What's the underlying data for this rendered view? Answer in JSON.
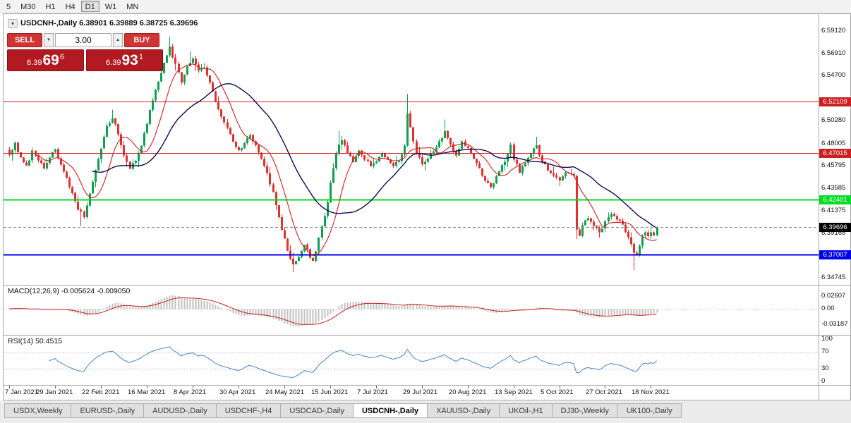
{
  "toolbar": {
    "timeframes": [
      "5",
      "M30",
      "H1",
      "H4",
      "D1",
      "W1",
      "MN"
    ],
    "active": "D1"
  },
  "chart": {
    "title": "USDCNH-,Daily 6.38901 6.39889 6.38725 6.39696",
    "collapse_icon": "▾",
    "trade_panel": {
      "sell_label": "SELL",
      "buy_label": "BUY",
      "volume": "3.00",
      "volume_down_icon": "▼",
      "volume_up_icon": "▲",
      "bid": "6.39696",
      "ask": "6.39931",
      "bid_display": {
        "prefix": "6.39",
        "big": "69",
        "sup": "6"
      },
      "ask_display": {
        "prefix": "6.39",
        "big": "93",
        "sup": "1"
      }
    }
  },
  "chart_data": {
    "type": "candlestick",
    "symbol": "USDCNH-",
    "timeframe": "Daily",
    "current_bar": {
      "open": 6.38901,
      "high": 6.39889,
      "low": 6.38725,
      "close": 6.39696
    },
    "last_close": 6.39696,
    "current_price_label": "6.39696",
    "num_candles": 227,
    "first_x": 8,
    "candle_spacing": 4.06,
    "candles_per_tick": 16,
    "up_color": "#0ea24e",
    "down_color": "#e23030",
    "price_axis": {
      "min": 6.344,
      "max": 6.603,
      "ticks": [
        "6.59120",
        "6.56910",
        "6.54700",
        "6.50280",
        "6.48005",
        "6.45795",
        "6.43585",
        "6.41375",
        "6.39165",
        "6.34745"
      ]
    },
    "x_ticks": [
      "7 Jan 2021",
      "29 Jan 2021",
      "22 Feb 2021",
      "16 Mar 2021",
      "8 Apr 2021",
      "30 Apr 2021",
      "24 May 2021",
      "15 Jun 2021",
      "7 Jul 2021",
      "29 Jul 2021",
      "20 Aug 2021",
      "13 Sep 2021",
      "5 Oct 2021",
      "27 Oct 2021",
      "18 Nov 2021"
    ],
    "levels": [
      {
        "value": 6.52109,
        "label": "6.52109",
        "color": "#cc2020",
        "width": 1
      },
      {
        "value": 6.47015,
        "label": "6.47015",
        "color": "#cc2020",
        "width": 1
      },
      {
        "value": 6.42401,
        "label": "6.42401",
        "color": "#00dd22",
        "width": 2
      },
      {
        "value": 6.37007,
        "label": "6.37007",
        "color": "#0000e6",
        "width": 2
      }
    ],
    "ma": [
      {
        "period": 10,
        "color": "#d02020",
        "w": 1.1
      },
      {
        "period": 30,
        "color": "#0b0b52",
        "w": 1.4
      }
    ],
    "close_keypoints": [
      [
        0,
        6.468
      ],
      [
        2,
        6.479
      ],
      [
        4,
        6.465
      ],
      [
        6,
        6.457
      ],
      [
        8,
        6.471
      ],
      [
        10,
        6.463
      ],
      [
        12,
        6.455
      ],
      [
        14,
        6.467
      ],
      [
        16,
        6.474
      ],
      [
        18,
        6.458
      ],
      [
        20,
        6.444
      ],
      [
        22,
        6.43
      ],
      [
        24,
        6.414
      ],
      [
        26,
        6.408
      ],
      [
        28,
        6.43
      ],
      [
        30,
        6.452
      ],
      [
        32,
        6.474
      ],
      [
        34,
        6.496
      ],
      [
        36,
        6.505
      ],
      [
        38,
        6.49
      ],
      [
        40,
        6.468
      ],
      [
        42,
        6.456
      ],
      [
        44,
        6.462
      ],
      [
        46,
        6.478
      ],
      [
        48,
        6.5
      ],
      [
        50,
        6.522
      ],
      [
        52,
        6.54
      ],
      [
        54,
        6.558
      ],
      [
        56,
        6.574
      ],
      [
        58,
        6.558
      ],
      [
        60,
        6.54
      ],
      [
        62,
        6.556
      ],
      [
        64,
        6.564
      ],
      [
        66,
        6.552
      ],
      [
        68,
        6.556
      ],
      [
        70,
        6.54
      ],
      [
        72,
        6.522
      ],
      [
        74,
        6.506
      ],
      [
        76,
        6.494
      ],
      [
        78,
        6.48
      ],
      [
        80,
        6.472
      ],
      [
        82,
        6.48
      ],
      [
        84,
        6.487
      ],
      [
        86,
        6.478
      ],
      [
        88,
        6.464
      ],
      [
        90,
        6.45
      ],
      [
        92,
        6.43
      ],
      [
        94,
        6.406
      ],
      [
        96,
        6.384
      ],
      [
        98,
        6.366
      ],
      [
        99,
        6.359
      ],
      [
        100,
        6.362
      ],
      [
        101,
        6.366
      ],
      [
        102,
        6.374
      ],
      [
        103,
        6.38
      ],
      [
        104,
        6.376
      ],
      [
        105,
        6.368
      ],
      [
        106,
        6.364
      ],
      [
        107,
        6.373
      ],
      [
        108,
        6.386
      ],
      [
        109,
        6.398
      ],
      [
        110,
        6.408
      ],
      [
        111,
        6.421
      ],
      [
        112,
        6.44
      ],
      [
        113,
        6.456
      ],
      [
        114,
        6.469
      ],
      [
        115,
        6.479
      ],
      [
        116,
        6.484
      ],
      [
        117,
        6.478
      ],
      [
        118,
        6.47
      ],
      [
        120,
        6.462
      ],
      [
        122,
        6.471
      ],
      [
        124,
        6.464
      ],
      [
        126,
        6.457
      ],
      [
        128,
        6.463
      ],
      [
        130,
        6.47
      ],
      [
        132,
        6.463
      ],
      [
        134,
        6.457
      ],
      [
        136,
        6.462
      ],
      [
        138,
        6.476
      ],
      [
        139,
        6.509
      ],
      [
        140,
        6.494
      ],
      [
        141,
        6.48
      ],
      [
        142,
        6.47
      ],
      [
        144,
        6.459
      ],
      [
        146,
        6.464
      ],
      [
        148,
        6.472
      ],
      [
        150,
        6.481
      ],
      [
        152,
        6.49
      ],
      [
        154,
        6.479
      ],
      [
        156,
        6.467
      ],
      [
        158,
        6.481
      ],
      [
        160,
        6.475
      ],
      [
        162,
        6.463
      ],
      [
        164,
        6.454
      ],
      [
        166,
        6.443
      ],
      [
        168,
        6.435
      ],
      [
        170,
        6.447
      ],
      [
        172,
        6.457
      ],
      [
        174,
        6.469
      ],
      [
        175,
        6.479
      ],
      [
        176,
        6.464
      ],
      [
        178,
        6.451
      ],
      [
        180,
        6.461
      ],
      [
        182,
        6.469
      ],
      [
        184,
        6.477
      ],
      [
        186,
        6.461
      ],
      [
        188,
        6.454
      ],
      [
        190,
        6.447
      ],
      [
        192,
        6.444
      ],
      [
        194,
        6.451
      ],
      [
        196,
        6.45
      ],
      [
        197,
        6.448
      ],
      [
        198,
        6.396
      ],
      [
        199,
        6.388
      ],
      [
        200,
        6.397
      ],
      [
        202,
        6.407
      ],
      [
        204,
        6.399
      ],
      [
        206,
        6.391
      ],
      [
        208,
        6.403
      ],
      [
        210,
        6.411
      ],
      [
        212,
        6.405
      ],
      [
        214,
        6.399
      ],
      [
        216,
        6.387
      ],
      [
        218,
        6.372
      ],
      [
        219,
        6.368
      ],
      [
        220,
        6.379
      ],
      [
        221,
        6.389
      ],
      [
        222,
        6.393
      ],
      [
        223,
        6.389
      ],
      [
        224,
        6.392
      ],
      [
        225,
        6.39
      ],
      [
        226,
        6.39696
      ]
    ],
    "spikes": [
      {
        "i": 25,
        "low": 6.398
      },
      {
        "i": 36,
        "high": 6.513
      },
      {
        "i": 56,
        "high": 6.585
      },
      {
        "i": 63,
        "high": 6.571
      },
      {
        "i": 99,
        "low": 6.3525
      },
      {
        "i": 115,
        "high": 6.492
      },
      {
        "i": 139,
        "high": 6.528
      },
      {
        "i": 152,
        "high": 6.503
      },
      {
        "i": 184,
        "high": 6.486
      },
      {
        "i": 198,
        "low": 6.385
      },
      {
        "i": 218,
        "low": 6.3545
      }
    ],
    "macd": {
      "label": "MACD(12,26,9) -0.005624 -0.009050",
      "fast": 12,
      "slow": 26,
      "signal": 9,
      "main_value": -0.005624,
      "signal_value": -0.00905,
      "axis": [
        "0.02607",
        "0.00",
        "-0.03187"
      ],
      "hist_color": "#c0c0c0",
      "signal_color": "#cc2020"
    },
    "rsi": {
      "label": "RSI(14) 50.4515",
      "period": 14,
      "value": 50.4515,
      "axis": [
        "100",
        "70",
        "30",
        "0"
      ],
      "levels": [
        70,
        30
      ],
      "color": "#4189c7"
    }
  },
  "tabs": [
    {
      "label": "USDX,Weekly"
    },
    {
      "label": "EURUSD-,Daily"
    },
    {
      "label": "AUDUSD-,Daily"
    },
    {
      "label": "USDCHF-,H4"
    },
    {
      "label": "USDCAD-,Daily"
    },
    {
      "label": "USDCNH-,Daily",
      "active": true
    },
    {
      "label": "XAUUSD-,Daily"
    },
    {
      "label": "UKOil-,H1"
    },
    {
      "label": "DJ30-,Weekly"
    },
    {
      "label": "UK100-,Daily"
    }
  ]
}
